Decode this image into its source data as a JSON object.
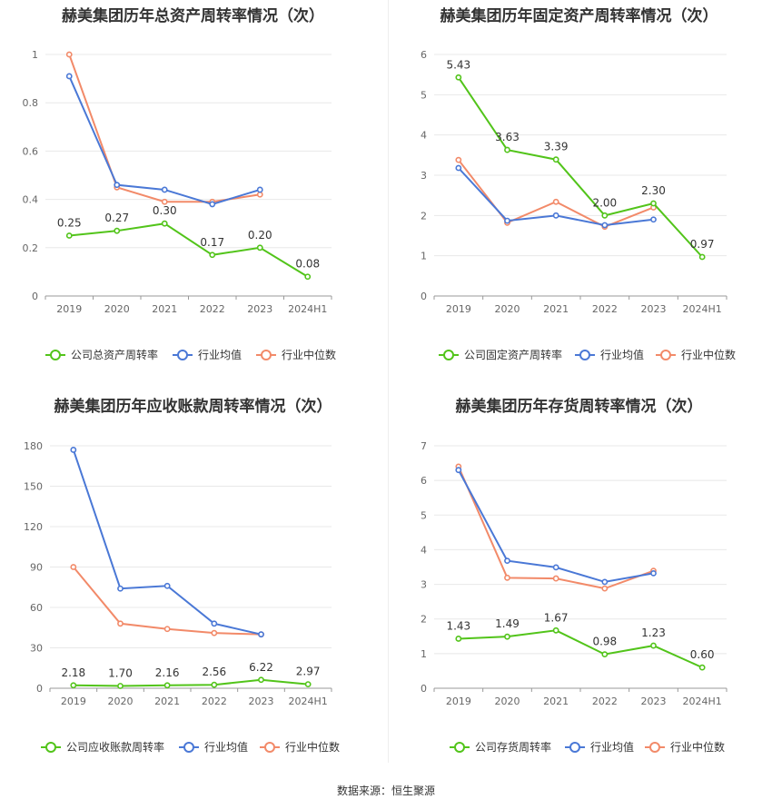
{
  "source": "数据来源：恒生聚源",
  "colors": {
    "company": "#52c41a",
    "avg": "#4a78d6",
    "median": "#f28a69"
  },
  "chart_data": [
    {
      "type": "line",
      "title": "赫美集团历年总资产周转率情况（次）",
      "categories": [
        "2019",
        "2020",
        "2021",
        "2022",
        "2023",
        "2024H1"
      ],
      "ylim": [
        0,
        1
      ],
      "yticks": [
        0,
        0.2,
        0.4,
        0.6,
        0.8,
        1
      ],
      "ytick_labels": [
        "0",
        "0.2",
        "0.4",
        "0.6",
        "0.8",
        "1"
      ],
      "legend": "bottom",
      "series": [
        {
          "name": "公司总资产周转率",
          "values": [
            0.25,
            0.27,
            0.3,
            0.17,
            0.2,
            0.08
          ],
          "labels": [
            "0.25",
            "0.27",
            "0.30",
            "0.17",
            "0.20",
            "0.08"
          ]
        },
        {
          "name": "行业均值",
          "values": [
            0.91,
            0.46,
            0.44,
            0.38,
            0.44,
            null
          ]
        },
        {
          "name": "行业中位数",
          "values": [
            1.0,
            0.45,
            0.39,
            0.39,
            0.42,
            null
          ]
        }
      ]
    },
    {
      "type": "line",
      "title": "赫美集团历年固定资产周转率情况（次）",
      "categories": [
        "2019",
        "2020",
        "2021",
        "2022",
        "2023",
        "2024H1"
      ],
      "ylim": [
        0,
        6
      ],
      "yticks": [
        0,
        1,
        2,
        3,
        4,
        5,
        6
      ],
      "ytick_labels": [
        "0",
        "1",
        "2",
        "3",
        "4",
        "5",
        "6"
      ],
      "legend": "bottom",
      "series": [
        {
          "name": "公司固定资产周转率",
          "values": [
            5.43,
            3.63,
            3.39,
            2.0,
            2.3,
            0.97
          ],
          "labels": [
            "5.43",
            "3.63",
            "3.39",
            "2.00",
            "2.30",
            "0.97"
          ]
        },
        {
          "name": "行业均值",
          "values": [
            3.18,
            1.87,
            2.0,
            1.76,
            1.9,
            null
          ]
        },
        {
          "name": "行业中位数",
          "values": [
            3.38,
            1.82,
            2.34,
            1.72,
            2.2,
            null
          ]
        }
      ]
    },
    {
      "type": "line",
      "title": "赫美集团历年应收账款周转率情况（次）",
      "categories": [
        "2019",
        "2020",
        "2021",
        "2022",
        "2023",
        "2024H1"
      ],
      "ylim": [
        0,
        180
      ],
      "yticks": [
        0,
        30,
        60,
        90,
        120,
        150,
        180
      ],
      "ytick_labels": [
        "0",
        "30",
        "60",
        "90",
        "120",
        "150",
        "180"
      ],
      "legend": "bottom",
      "series": [
        {
          "name": "公司应收账款周转率",
          "values": [
            2.18,
            1.7,
            2.16,
            2.56,
            6.22,
            2.97
          ],
          "labels": [
            "2.18",
            "1.70",
            "2.16",
            "2.56",
            "6.22",
            "2.97"
          ]
        },
        {
          "name": "行业均值",
          "values": [
            177,
            74,
            76,
            48,
            40,
            null
          ]
        },
        {
          "name": "行业中位数",
          "values": [
            90,
            48,
            44,
            41,
            40,
            null
          ]
        }
      ]
    },
    {
      "type": "line",
      "title": "赫美集团历年存货周转率情况（次）",
      "categories": [
        "2019",
        "2020",
        "2021",
        "2022",
        "2023",
        "2024H1"
      ],
      "ylim": [
        0,
        7
      ],
      "yticks": [
        0,
        1,
        2,
        3,
        4,
        5,
        6,
        7
      ],
      "ytick_labels": [
        "0",
        "1",
        "2",
        "3",
        "4",
        "5",
        "6",
        "7"
      ],
      "legend": "bottom",
      "series": [
        {
          "name": "公司存货周转率",
          "values": [
            1.43,
            1.49,
            1.67,
            0.98,
            1.23,
            0.6
          ],
          "labels": [
            "1.43",
            "1.49",
            "1.67",
            "0.98",
            "1.23",
            "0.60"
          ]
        },
        {
          "name": "行业均值",
          "values": [
            6.3,
            3.68,
            3.49,
            3.07,
            3.32,
            null
          ]
        },
        {
          "name": "行业中位数",
          "values": [
            6.4,
            3.19,
            3.17,
            2.88,
            3.39,
            null
          ]
        }
      ]
    }
  ]
}
